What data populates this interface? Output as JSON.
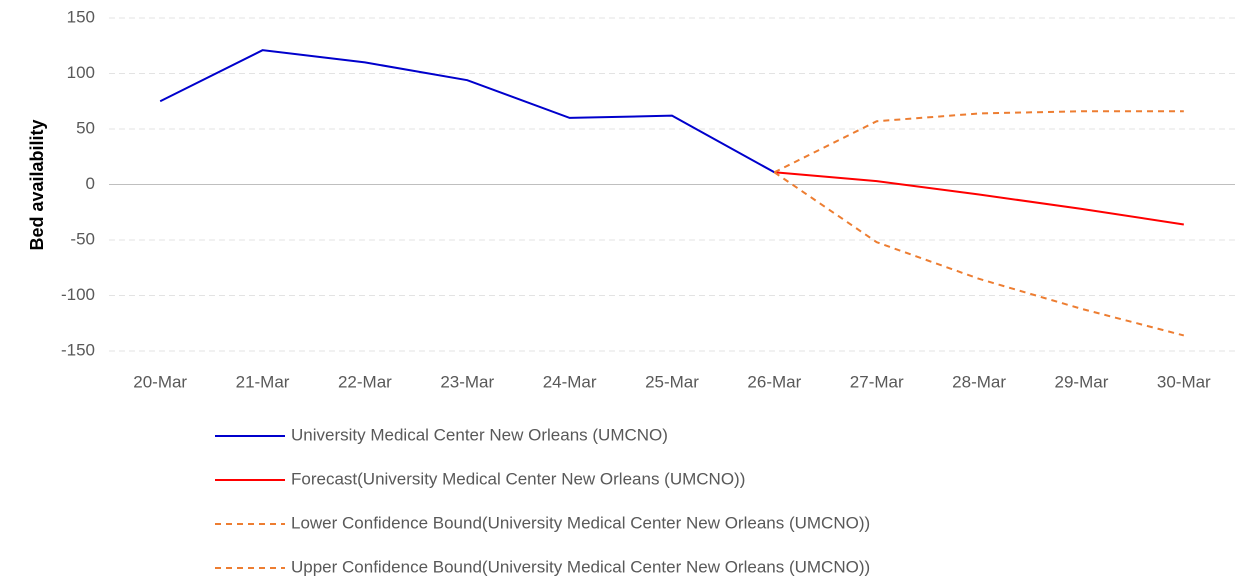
{
  "chart_data": {
    "type": "line",
    "y_label": "Bed availability",
    "categories": [
      "20-Mar",
      "21-Mar",
      "22-Mar",
      "23-Mar",
      "24-Mar",
      "25-Mar",
      "26-Mar",
      "27-Mar",
      "28-Mar",
      "29-Mar",
      "30-Mar"
    ],
    "series": [
      {
        "name": "University Medical Center New Orleans (UMCNO)",
        "color": "#0000cc",
        "dashed": false,
        "values": [
          75,
          121,
          110,
          94,
          60,
          62,
          11,
          null,
          null,
          null,
          null
        ]
      },
      {
        "name": "Forecast(University Medical Center New Orleans (UMCNO))",
        "color": "#ff0000",
        "dashed": false,
        "values": [
          null,
          null,
          null,
          null,
          null,
          null,
          11,
          3,
          -9,
          -22,
          -36
        ]
      },
      {
        "name": "Lower Confidence Bound(University Medical Center New Orleans (UMCNO))",
        "color": "#ed7d31",
        "dashed": true,
        "values": [
          null,
          null,
          null,
          null,
          null,
          null,
          11,
          -52,
          -85,
          -112,
          -136
        ]
      },
      {
        "name": "Upper Confidence Bound(University Medical Center New Orleans (UMCNO))",
        "color": "#ed7d31",
        "dashed": true,
        "values": [
          null,
          null,
          null,
          null,
          null,
          null,
          11,
          57,
          64,
          66,
          66
        ]
      }
    ],
    "ylim": [
      -150,
      150
    ],
    "yticks": [
      150,
      100,
      50,
      0,
      -50,
      -100,
      -150
    ],
    "grid": true,
    "legend": "bottom"
  }
}
